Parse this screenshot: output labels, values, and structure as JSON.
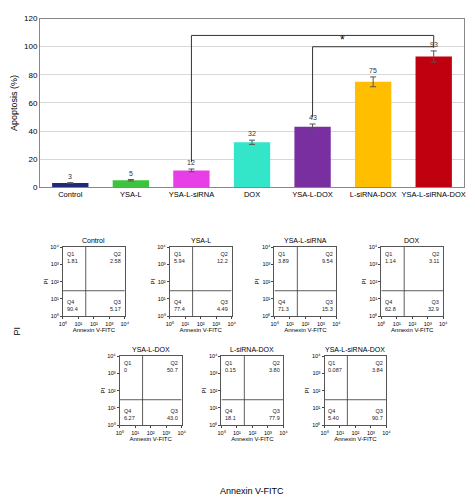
{
  "chart_data": [
    {
      "type": "bar",
      "y_label": "Apoptosis (%)",
      "categories": [
        "Control",
        "YSA-L",
        "YSA-L-siRNA",
        "DOX",
        "YSA-L-DOX",
        "L-siRNA-DOX",
        "YSA-L-siRNA-DOX"
      ],
      "values": [
        3,
        5,
        12,
        32,
        43,
        75,
        93
      ],
      "errors": [
        0.3,
        0.5,
        1,
        1.5,
        2,
        3.5,
        4
      ],
      "colors": [
        "#1f2a7a",
        "#3cc43c",
        "#e83ee8",
        "#33e6c9",
        "#7a2fa0",
        "#ffbf00",
        "#c0000f"
      ],
      "ylim": [
        0,
        120
      ],
      "yticks": [
        0,
        20,
        40,
        60,
        80,
        100,
        120
      ],
      "grid": true,
      "data_labels": true,
      "significance": {
        "label": "*",
        "pairs": [
          [
            "YSA-L-siRNA",
            "YSA-L-siRNA-DOX"
          ],
          [
            "YSA-L-DOX",
            "YSA-L-siRNA-DOX"
          ]
        ]
      }
    },
    {
      "type": "scatter",
      "title": "Control",
      "x_label": "Annexin V-FITC",
      "y_label": "PI",
      "log": true,
      "xlim": [
        1,
        10000
      ],
      "ylim": [
        1,
        10000
      ],
      "xticks": [
        {
          "value": 1,
          "label": "10⁰"
        },
        {
          "value": 10,
          "label": "10¹"
        },
        {
          "value": 100,
          "label": "10²"
        },
        {
          "value": 1000,
          "label": "10³"
        },
        {
          "value": 10000,
          "label": "10⁴"
        }
      ],
      "yticks": [
        {
          "value": 1,
          "label": "10⁰"
        },
        {
          "value": 10,
          "label": "10¹"
        },
        {
          "value": 100,
          "label": "10²"
        },
        {
          "value": 1000,
          "label": "10³"
        },
        {
          "value": 10000,
          "label": "10⁴"
        }
      ],
      "gate": {
        "x": 30,
        "y": 30
      },
      "quadrants": [
        {
          "name": "Q1",
          "value": 1.81
        },
        {
          "name": "Q2",
          "value": 2.58
        },
        {
          "name": "Q3",
          "value": 5.17
        },
        {
          "name": "Q4",
          "value": 90.4
        }
      ]
    },
    {
      "type": "scatter",
      "title": "YSA-L",
      "x_label": "Annexin V-FITC",
      "y_label": "PI",
      "log": true,
      "xlim": [
        1,
        10000
      ],
      "ylim": [
        1,
        10000
      ],
      "xticks": [
        {
          "value": 1,
          "label": "10⁰"
        },
        {
          "value": 10,
          "label": "10¹"
        },
        {
          "value": 100,
          "label": "10²"
        },
        {
          "value": 1000,
          "label": "10³"
        },
        {
          "value": 10000,
          "label": "10⁴"
        }
      ],
      "yticks": [
        {
          "value": 1,
          "label": "10⁰"
        },
        {
          "value": 10,
          "label": "10¹"
        },
        {
          "value": 100,
          "label": "10²"
        },
        {
          "value": 1000,
          "label": "10³"
        },
        {
          "value": 10000,
          "label": "10⁴"
        }
      ],
      "gate": {
        "x": 30,
        "y": 30
      },
      "quadrants": [
        {
          "name": "Q1",
          "value": 5.94
        },
        {
          "name": "Q2",
          "value": 12.2
        },
        {
          "name": "Q3",
          "value": 4.49
        },
        {
          "name": "Q4",
          "value": 77.4
        }
      ]
    },
    {
      "type": "scatter",
      "title": "YSA-L-siRNA",
      "x_label": "Annexin V-FITC",
      "y_label": "PI",
      "log": true,
      "xlim": [
        1,
        10000
      ],
      "ylim": [
        1,
        10000
      ],
      "xticks": [
        {
          "value": 1,
          "label": "10⁰"
        },
        {
          "value": 10,
          "label": "10¹"
        },
        {
          "value": 100,
          "label": "10²"
        },
        {
          "value": 1000,
          "label": "10³"
        },
        {
          "value": 10000,
          "label": "10⁴"
        }
      ],
      "yticks": [
        {
          "value": 1,
          "label": "10⁰"
        },
        {
          "value": 10,
          "label": "10¹"
        },
        {
          "value": 100,
          "label": "10²"
        },
        {
          "value": 1000,
          "label": "10³"
        },
        {
          "value": 10000,
          "label": "10⁴"
        }
      ],
      "gate": {
        "x": 30,
        "y": 30
      },
      "quadrants": [
        {
          "name": "Q1",
          "value": 3.89
        },
        {
          "name": "Q2",
          "value": 9.54
        },
        {
          "name": "Q3",
          "value": 15.3
        },
        {
          "name": "Q4",
          "value": 71.3
        }
      ]
    },
    {
      "type": "scatter",
      "title": "DOX",
      "x_label": "Annexin V-FITC",
      "y_label": "PI",
      "log": true,
      "xlim": [
        1,
        10000
      ],
      "ylim": [
        1,
        10000
      ],
      "xticks": [
        {
          "value": 1,
          "label": "10⁰"
        },
        {
          "value": 10,
          "label": "10¹"
        },
        {
          "value": 100,
          "label": "10²"
        },
        {
          "value": 1000,
          "label": "10³"
        },
        {
          "value": 10000,
          "label": "10⁴"
        }
      ],
      "yticks": [
        {
          "value": 1,
          "label": "10⁰"
        },
        {
          "value": 10,
          "label": "10¹"
        },
        {
          "value": 100,
          "label": "10²"
        },
        {
          "value": 1000,
          "label": "10³"
        },
        {
          "value": 10000,
          "label": "10⁴"
        }
      ],
      "gate": {
        "x": 30,
        "y": 30
      },
      "quadrants": [
        {
          "name": "Q1",
          "value": 1.14
        },
        {
          "name": "Q2",
          "value": 3.11
        },
        {
          "name": "Q3",
          "value": 32.9
        },
        {
          "name": "Q4",
          "value": 62.8
        }
      ]
    },
    {
      "type": "scatter",
      "title": "YSA-L-DOX",
      "x_label": "Annexin V-FITC",
      "y_label": "PI",
      "log": true,
      "xlim": [
        1,
        10000
      ],
      "ylim": [
        1,
        10000
      ],
      "xticks": [
        {
          "value": 1,
          "label": "10⁰"
        },
        {
          "value": 10,
          "label": "10¹"
        },
        {
          "value": 100,
          "label": "10²"
        },
        {
          "value": 1000,
          "label": "10³"
        },
        {
          "value": 10000,
          "label": "10⁴"
        }
      ],
      "yticks": [
        {
          "value": 1,
          "label": "10⁰"
        },
        {
          "value": 10,
          "label": "10¹"
        },
        {
          "value": 100,
          "label": "10²"
        },
        {
          "value": 1000,
          "label": "10³"
        },
        {
          "value": 10000,
          "label": "10⁴"
        }
      ],
      "gate": {
        "x": 30,
        "y": 30
      },
      "quadrants": [
        {
          "name": "Q1",
          "value": 0
        },
        {
          "name": "Q2",
          "value": 50.7
        },
        {
          "name": "Q3",
          "value": 43.0,
          "label": "43.0"
        },
        {
          "name": "Q4",
          "value": 6.27
        }
      ]
    },
    {
      "type": "scatter",
      "title": "L-siRNA-DOX",
      "x_label": "Annexin V-FITC",
      "y_label": "PI",
      "log": true,
      "xlim": [
        1,
        10000
      ],
      "ylim": [
        1,
        10000
      ],
      "xticks": [
        {
          "value": 1,
          "label": "10⁰"
        },
        {
          "value": 10,
          "label": "10¹"
        },
        {
          "value": 100,
          "label": "10²"
        },
        {
          "value": 1000,
          "label": "10³"
        },
        {
          "value": 10000,
          "label": "10⁴"
        }
      ],
      "yticks": [
        {
          "value": 1,
          "label": "10⁰"
        },
        {
          "value": 10,
          "label": "10¹"
        },
        {
          "value": 100,
          "label": "10²"
        },
        {
          "value": 1000,
          "label": "10³"
        },
        {
          "value": 10000,
          "label": "10⁴"
        }
      ],
      "gate": {
        "x": 30,
        "y": 30
      },
      "quadrants": [
        {
          "name": "Q1",
          "value": 0.15
        },
        {
          "name": "Q2",
          "value": 3.8,
          "label": "3.80"
        },
        {
          "name": "Q3",
          "value": 77.9
        },
        {
          "name": "Q4",
          "value": 18.1
        }
      ]
    },
    {
      "type": "scatter",
      "title": "YSA-L-siRNA-DOX",
      "x_label": "Annexin V-FITC",
      "y_label": "PI",
      "log": true,
      "xlim": [
        1,
        10000
      ],
      "ylim": [
        1,
        10000
      ],
      "xticks": [
        {
          "value": 1,
          "label": "10⁰"
        },
        {
          "value": 10,
          "label": "10¹"
        },
        {
          "value": 100,
          "label": "10²"
        },
        {
          "value": 1000,
          "label": "10³"
        },
        {
          "value": 10000,
          "label": "10⁴"
        }
      ],
      "yticks": [
        {
          "value": 1,
          "label": "10⁰"
        },
        {
          "value": 10,
          "label": "10¹"
        },
        {
          "value": 100,
          "label": "10²"
        },
        {
          "value": 1000,
          "label": "10³"
        },
        {
          "value": 10000,
          "label": "10⁴"
        }
      ],
      "gate": {
        "x": 30,
        "y": 30
      },
      "quadrants": [
        {
          "name": "Q1",
          "value": 0.087
        },
        {
          "name": "Q2",
          "value": 3.84
        },
        {
          "name": "Q3",
          "value": 90.7
        },
        {
          "name": "Q4",
          "value": 5.4,
          "label": "5.40"
        }
      ]
    }
  ],
  "shared_axis_labels": {
    "x": "Annexin V-FITC",
    "y": "PI"
  }
}
